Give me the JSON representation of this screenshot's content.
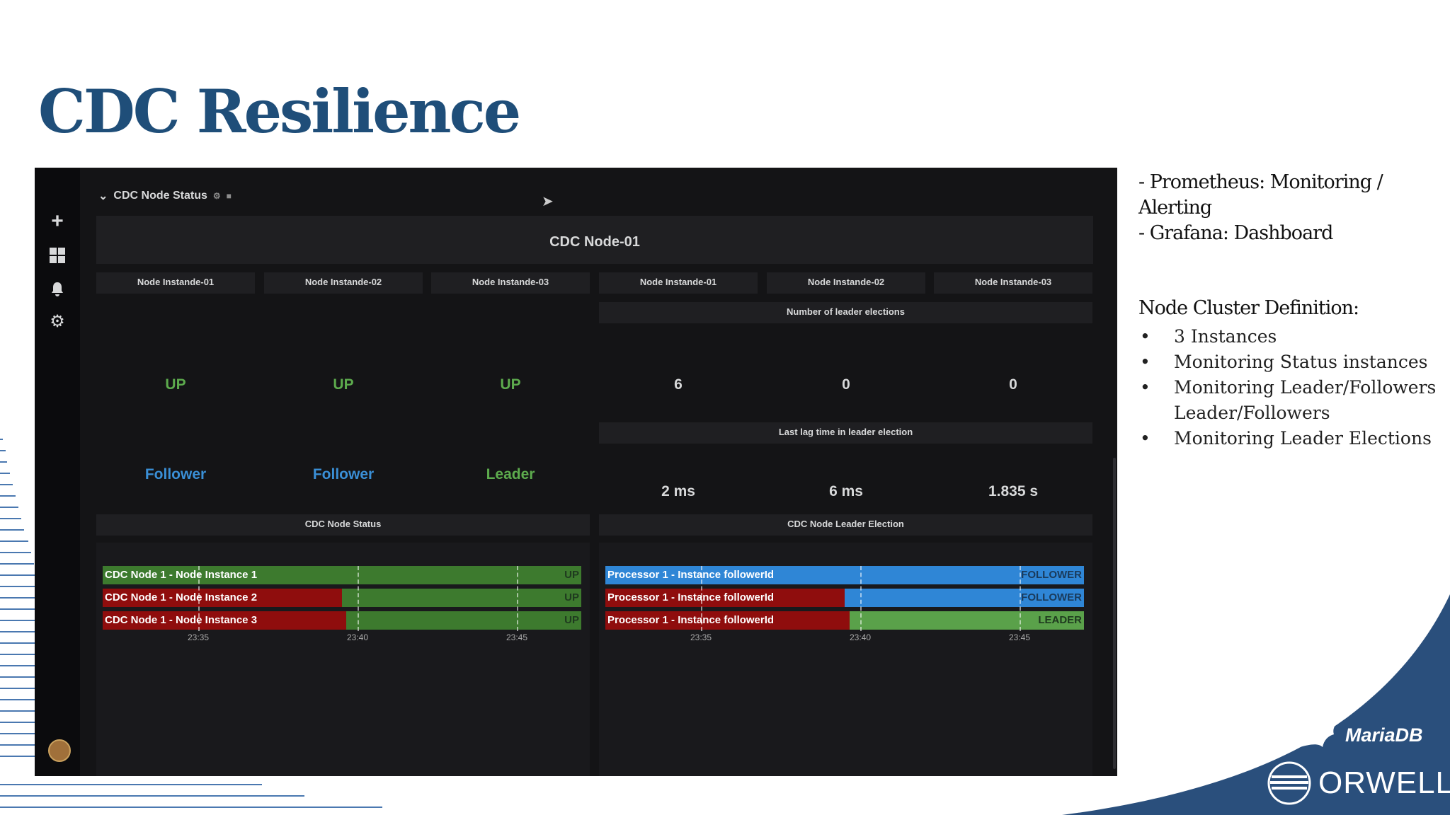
{
  "slide": {
    "title": "CDC Resilience"
  },
  "dashboard": {
    "row_title": "CDC Node Status",
    "node_panel_title": "CDC Node-01",
    "instance_titles": [
      "Node Instande-01",
      "Node Instande-02",
      "Node Instande-03",
      "Node Instande-01",
      "Node Instande-02",
      "Node Instande-03"
    ],
    "status_values": [
      "UP",
      "UP",
      "UP"
    ],
    "role_values": [
      "Follower",
      "Follower",
      "Leader"
    ],
    "elections_title": "Number of leader elections",
    "election_counts": [
      "6",
      "0",
      "0"
    ],
    "lag_title": "Last lag time in leader election",
    "lag_values": [
      "2 ms",
      "6 ms",
      "1.835 s"
    ],
    "status_timeline": {
      "title": "CDC Node Status",
      "rows": [
        {
          "label": "CDC Node 1 - Node Instance 1",
          "value": "UP"
        },
        {
          "label": "CDC Node 1 - Node Instance 2",
          "value": "UP"
        },
        {
          "label": "CDC Node 1 - Node Instance 3",
          "value": "UP"
        }
      ],
      "ticks": [
        "23:35",
        "23:40",
        "23:45"
      ]
    },
    "election_timeline": {
      "title": "CDC Node Leader Election",
      "rows": [
        {
          "label": "Processor 1 - Instance followerId",
          "value": "FOLLOWER"
        },
        {
          "label": "Processor 1 - Instance followerId",
          "value": "FOLLOWER"
        },
        {
          "label": "Processor 1 - Instance followerId",
          "value": "LEADER"
        }
      ],
      "ticks": [
        "23:35",
        "23:40",
        "23:45"
      ]
    },
    "colors": {
      "up": "#3d7a2e",
      "down": "#8f0d0d",
      "follower": "#2f86d6",
      "leader": "#5aa14a",
      "bg": "#141416",
      "panel": "#1f1f22"
    }
  },
  "notes": {
    "line1": "- Prometheus: Monitoring /",
    "line2": "Alerting",
    "line3": "- Grafana: Dashboard"
  },
  "definition": {
    "title": "Node Cluster Definition:",
    "items": [
      "3 Instances",
      "Monitoring Status instances",
      "Monitoring Leader/Followers Leader/Followers",
      "Monitoring Leader Elections"
    ]
  },
  "logos": {
    "mariadb": "MariaDB",
    "orwell": "ORWELL"
  }
}
